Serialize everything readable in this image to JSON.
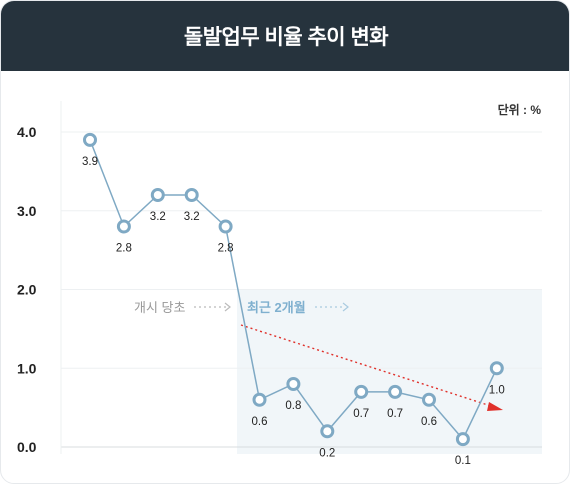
{
  "header": {
    "title": "돌발업무 비율 추이 변화"
  },
  "chart_data": {
    "type": "line",
    "title": "돌발업무 비율 추이 변화",
    "unit_label": "단위 : %",
    "ylim": [
      0,
      4.0
    ],
    "y_ticks": [
      "0.0",
      "1.0",
      "2.0",
      "3.0",
      "4.0"
    ],
    "series": [
      {
        "values": [
          3.9,
          2.8,
          3.2,
          3.2,
          2.8,
          0.6,
          0.8,
          0.2,
          0.7,
          0.7,
          0.6,
          0.1,
          1.0
        ]
      }
    ],
    "annotations": {
      "initial": "개시 당초",
      "recent": "최근 2개월"
    },
    "grid": true,
    "colors": {
      "line": "#7fa9c4",
      "marker_stroke": "#7fa9c4",
      "highlight_bg": "#f1f6f9",
      "trend": "#e0312b",
      "header_bg": "#26333d"
    }
  }
}
